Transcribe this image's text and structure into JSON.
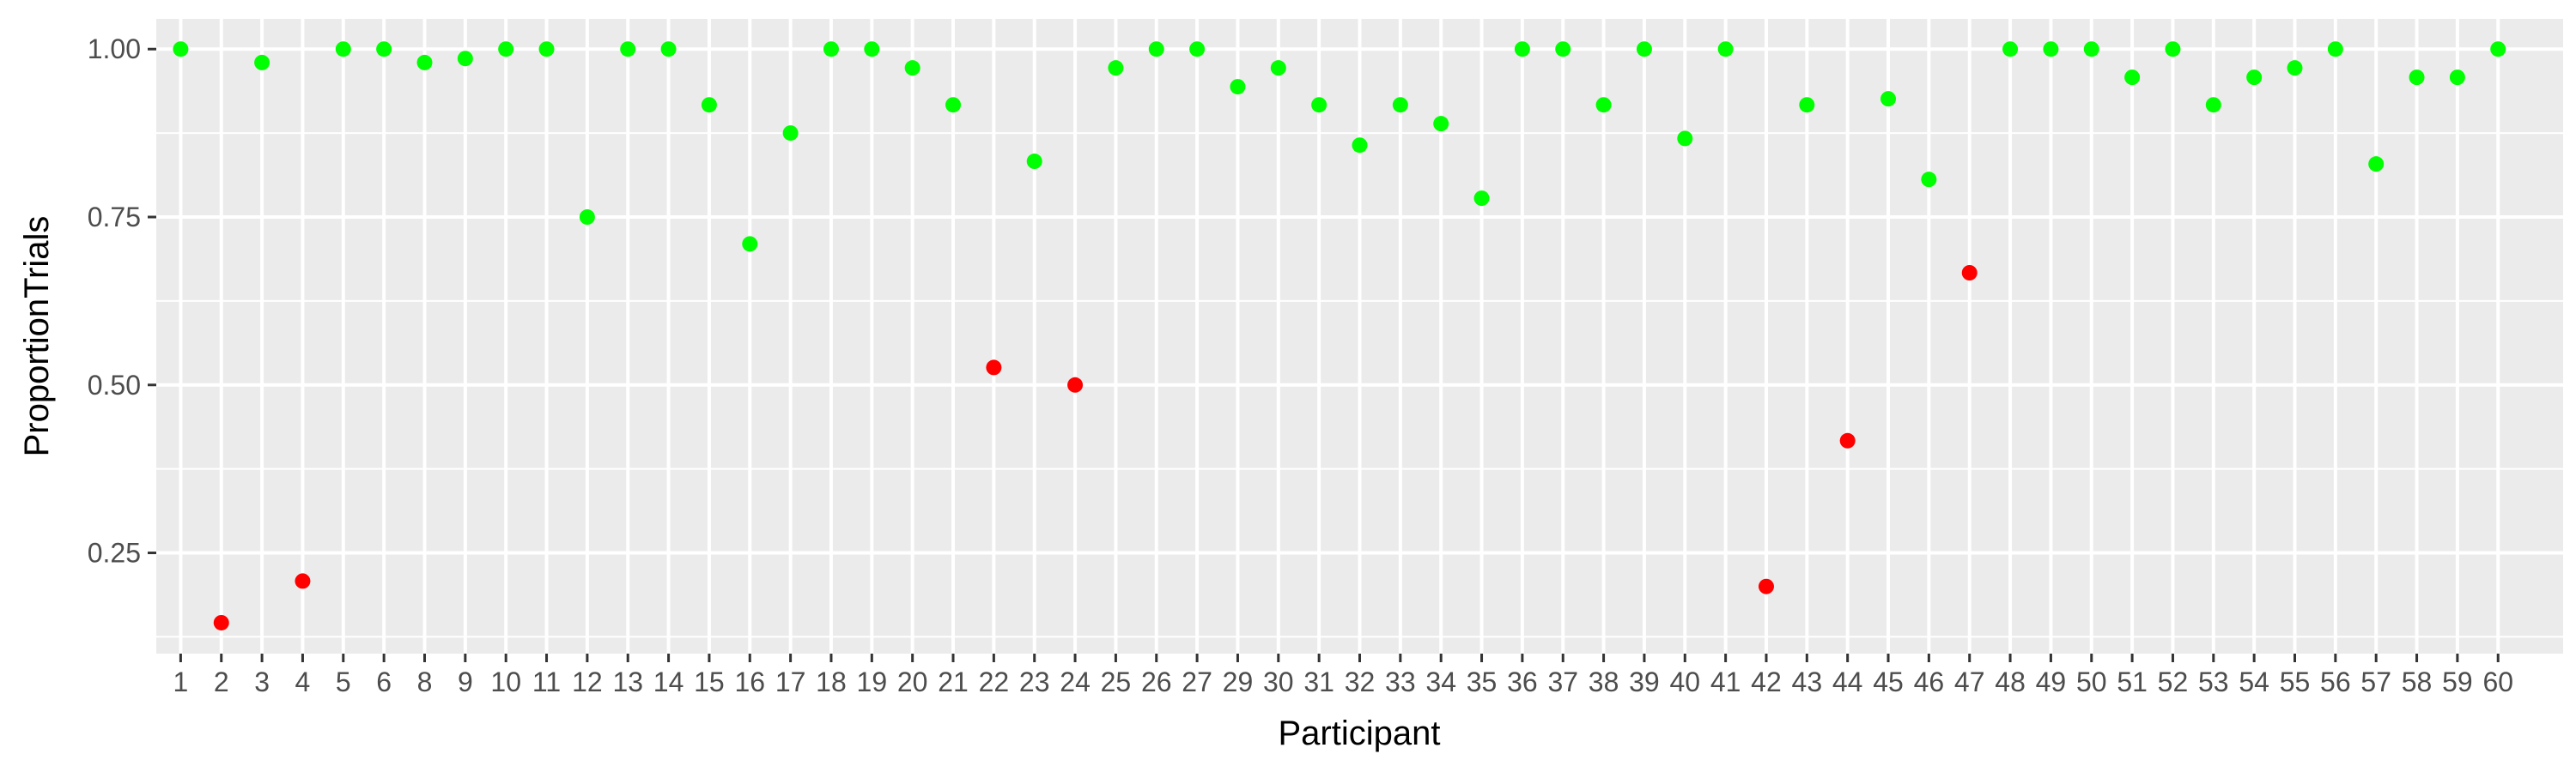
{
  "chart_data": {
    "type": "scatter",
    "title": "",
    "xlabel": "Participant",
    "ylabel": "ProportionTrials",
    "x_type": "categorical",
    "categories": [
      "1",
      "2",
      "3",
      "4",
      "5",
      "6",
      "8",
      "9",
      "10",
      "11",
      "12",
      "13",
      "14",
      "15",
      "16",
      "17",
      "18",
      "19",
      "20",
      "21",
      "22",
      "23",
      "24",
      "25",
      "26",
      "27",
      "29",
      "30",
      "31",
      "32",
      "33",
      "34",
      "35",
      "36",
      "37",
      "38",
      "39",
      "40",
      "41",
      "42",
      "43",
      "44",
      "45",
      "46",
      "47",
      "48",
      "49",
      "50",
      "51",
      "52",
      "53",
      "54",
      "55",
      "56",
      "57",
      "58",
      "59",
      "60"
    ],
    "values": [
      1.0,
      0.146,
      0.98,
      0.208,
      1.0,
      1.0,
      0.98,
      0.986,
      1.0,
      1.0,
      0.75,
      1.0,
      1.0,
      0.917,
      0.71,
      0.875,
      1.0,
      1.0,
      0.972,
      0.917,
      0.526,
      0.833,
      0.5,
      0.972,
      1.0,
      1.0,
      0.944,
      0.972,
      0.917,
      0.857,
      0.917,
      0.889,
      0.778,
      1.0,
      1.0,
      0.917,
      1.0,
      0.867,
      1.0,
      0.2,
      0.917,
      0.417,
      0.926,
      0.806,
      0.667,
      1.0,
      1.0,
      1.0,
      0.958,
      1.0,
      0.917,
      0.958,
      0.972,
      1.0,
      0.829,
      0.958,
      0.958,
      1.0
    ],
    "point_colors": [
      "#00ff00",
      "#ff0000",
      "#00ff00",
      "#ff0000",
      "#00ff00",
      "#00ff00",
      "#00ff00",
      "#00ff00",
      "#00ff00",
      "#00ff00",
      "#00ff00",
      "#00ff00",
      "#00ff00",
      "#00ff00",
      "#00ff00",
      "#00ff00",
      "#00ff00",
      "#00ff00",
      "#00ff00",
      "#00ff00",
      "#ff0000",
      "#00ff00",
      "#ff0000",
      "#00ff00",
      "#00ff00",
      "#00ff00",
      "#00ff00",
      "#00ff00",
      "#00ff00",
      "#00ff00",
      "#00ff00",
      "#00ff00",
      "#00ff00",
      "#00ff00",
      "#00ff00",
      "#00ff00",
      "#00ff00",
      "#00ff00",
      "#00ff00",
      "#ff0000",
      "#00ff00",
      "#ff0000",
      "#00ff00",
      "#00ff00",
      "#ff0000",
      "#00ff00",
      "#00ff00",
      "#00ff00",
      "#00ff00",
      "#00ff00",
      "#00ff00",
      "#00ff00",
      "#00ff00",
      "#00ff00",
      "#00ff00",
      "#00ff00",
      "#00ff00",
      "#00ff00"
    ],
    "ylim": [
      0.1,
      1.045
    ],
    "yticks": [
      0.25,
      0.5,
      0.75,
      1.0
    ],
    "ytick_labels": [
      "0.25",
      "0.50",
      "0.75",
      "1.00"
    ],
    "grid": true,
    "legend": "none",
    "colors": {
      "panel_background": "#ebebeb",
      "grid_major": "#ffffff",
      "above_threshold": "#00ff00",
      "below_threshold": "#ff0000"
    }
  }
}
